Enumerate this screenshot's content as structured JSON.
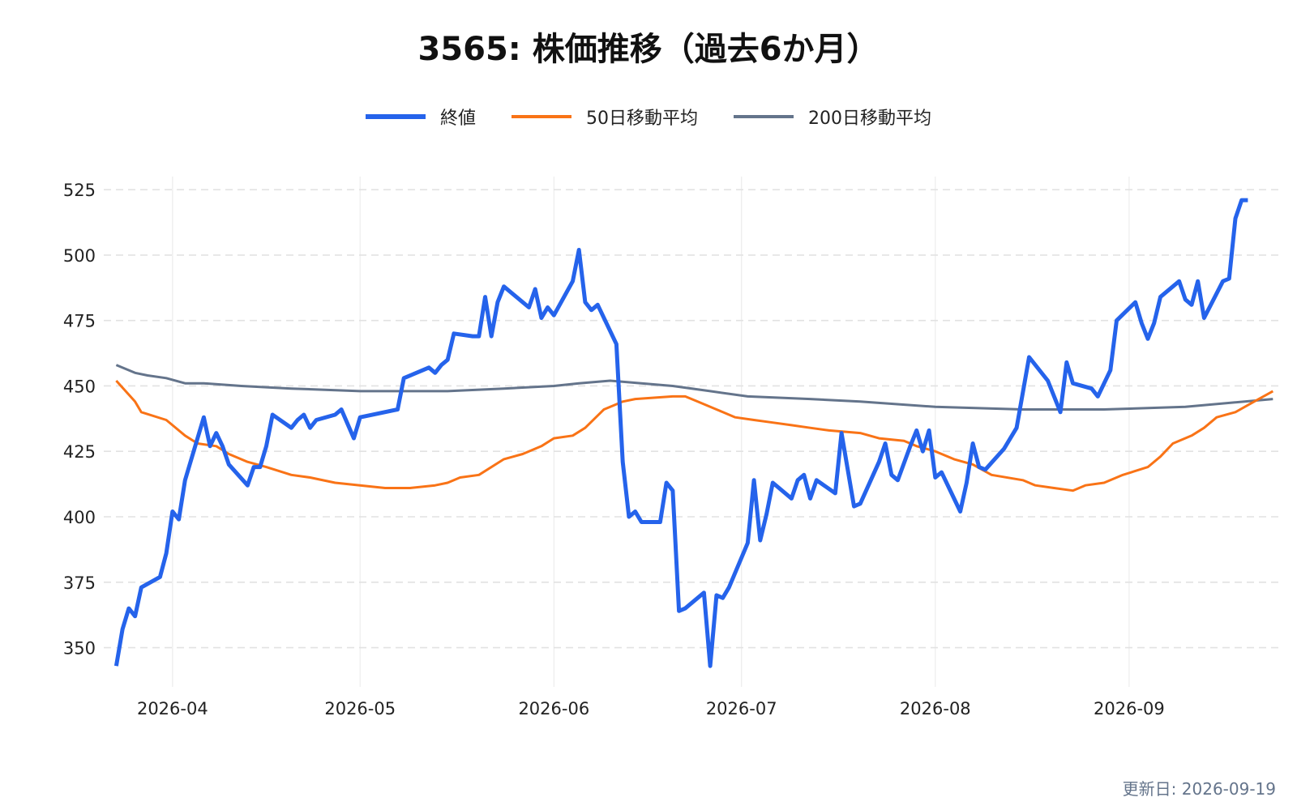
{
  "chart_data": {
    "type": "line",
    "title": "3565: 株価推移（過去6か月）",
    "xlabel": "",
    "ylabel": "",
    "x_range": [
      "2026-03-21",
      "2026-09-25"
    ],
    "ylim": [
      335,
      530
    ],
    "y_ticks": [
      350,
      375,
      400,
      425,
      450,
      475,
      500,
      525
    ],
    "x_ticks": [
      {
        "label": "2026-04",
        "date": "2026-04-01"
      },
      {
        "label": "2026-05",
        "date": "2026-05-01"
      },
      {
        "label": "2026-06",
        "date": "2026-06-01"
      },
      {
        "label": "2026-07",
        "date": "2026-07-01"
      },
      {
        "label": "2026-08",
        "date": "2026-08-01"
      },
      {
        "label": "2026-09",
        "date": "2026-09-01"
      }
    ],
    "grid": {
      "x": true,
      "y": true,
      "y_dashed": true
    },
    "legend_position": "top-center",
    "series": [
      {
        "name": "終値",
        "color": "#2563eb",
        "width": 5,
        "points": [
          [
            "2026-03-23",
            343
          ],
          [
            "2026-03-24",
            357
          ],
          [
            "2026-03-25",
            365
          ],
          [
            "2026-03-26",
            362
          ],
          [
            "2026-03-27",
            373
          ],
          [
            "2026-03-30",
            377
          ],
          [
            "2026-03-31",
            386
          ],
          [
            "2026-04-01",
            402
          ],
          [
            "2026-04-02",
            399
          ],
          [
            "2026-04-03",
            414
          ],
          [
            "2026-04-06",
            438
          ],
          [
            "2026-04-07",
            427
          ],
          [
            "2026-04-08",
            432
          ],
          [
            "2026-04-09",
            427
          ],
          [
            "2026-04-10",
            420
          ],
          [
            "2026-04-13",
            412
          ],
          [
            "2026-04-14",
            419
          ],
          [
            "2026-04-15",
            419
          ],
          [
            "2026-04-16",
            427
          ],
          [
            "2026-04-17",
            439
          ],
          [
            "2026-04-20",
            434
          ],
          [
            "2026-04-21",
            437
          ],
          [
            "2026-04-22",
            439
          ],
          [
            "2026-04-23",
            434
          ],
          [
            "2026-04-24",
            437
          ],
          [
            "2026-04-27",
            439
          ],
          [
            "2026-04-28",
            441
          ],
          [
            "2026-04-30",
            430
          ],
          [
            "2026-05-01",
            438
          ],
          [
            "2026-05-07",
            441
          ],
          [
            "2026-05-08",
            453
          ],
          [
            "2026-05-11",
            456
          ],
          [
            "2026-05-12",
            457
          ],
          [
            "2026-05-13",
            455
          ],
          [
            "2026-05-14",
            458
          ],
          [
            "2026-05-15",
            460
          ],
          [
            "2026-05-16",
            470
          ],
          [
            "2026-05-19",
            469
          ],
          [
            "2026-05-20",
            469
          ],
          [
            "2026-05-21",
            484
          ],
          [
            "2026-05-22",
            469
          ],
          [
            "2026-05-23",
            482
          ],
          [
            "2026-05-24",
            488
          ],
          [
            "2026-05-27",
            482
          ],
          [
            "2026-05-28",
            480
          ],
          [
            "2026-05-29",
            487
          ],
          [
            "2026-05-30",
            476
          ],
          [
            "2026-05-31",
            480
          ],
          [
            "2026-06-01",
            477
          ],
          [
            "2026-06-04",
            490
          ],
          [
            "2026-06-05",
            502
          ],
          [
            "2026-06-06",
            482
          ],
          [
            "2026-06-07",
            479
          ],
          [
            "2026-06-08",
            481
          ],
          [
            "2026-06-11",
            466
          ],
          [
            "2026-06-12",
            421
          ],
          [
            "2026-06-13",
            400
          ],
          [
            "2026-06-14",
            402
          ],
          [
            "2026-06-15",
            398
          ],
          [
            "2026-06-17",
            398
          ],
          [
            "2026-06-18",
            398
          ],
          [
            "2026-06-19",
            413
          ],
          [
            "2026-06-20",
            410
          ],
          [
            "2026-06-21",
            364
          ],
          [
            "2026-06-22",
            365
          ],
          [
            "2026-06-25",
            371
          ],
          [
            "2026-06-26",
            343
          ],
          [
            "2026-06-27",
            370
          ],
          [
            "2026-06-28",
            369
          ],
          [
            "2026-06-29",
            373
          ],
          [
            "2026-07-02",
            390
          ],
          [
            "2026-07-03",
            414
          ],
          [
            "2026-07-04",
            391
          ],
          [
            "2026-07-05",
            401
          ],
          [
            "2026-07-06",
            413
          ],
          [
            "2026-07-09",
            407
          ],
          [
            "2026-07-10",
            414
          ],
          [
            "2026-07-11",
            416
          ],
          [
            "2026-07-12",
            407
          ],
          [
            "2026-07-13",
            414
          ],
          [
            "2026-07-16",
            409
          ],
          [
            "2026-07-17",
            432
          ],
          [
            "2026-07-19",
            404
          ],
          [
            "2026-07-20",
            405
          ],
          [
            "2026-07-23",
            421
          ],
          [
            "2026-07-24",
            428
          ],
          [
            "2026-07-25",
            416
          ],
          [
            "2026-07-26",
            414
          ],
          [
            "2026-07-28",
            427
          ],
          [
            "2026-07-29",
            433
          ],
          [
            "2026-07-30",
            425
          ],
          [
            "2026-07-31",
            433
          ],
          [
            "2026-08-01",
            415
          ],
          [
            "2026-08-02",
            417
          ],
          [
            "2026-08-05",
            402
          ],
          [
            "2026-08-06",
            413
          ],
          [
            "2026-08-07",
            428
          ],
          [
            "2026-08-08",
            419
          ],
          [
            "2026-08-09",
            418
          ],
          [
            "2026-08-12",
            426
          ],
          [
            "2026-08-14",
            434
          ],
          [
            "2026-08-16",
            461
          ],
          [
            "2026-08-19",
            452
          ],
          [
            "2026-08-21",
            440
          ],
          [
            "2026-08-22",
            459
          ],
          [
            "2026-08-23",
            451
          ],
          [
            "2026-08-26",
            449
          ],
          [
            "2026-08-27",
            446
          ],
          [
            "2026-08-29",
            456
          ],
          [
            "2026-08-30",
            475
          ],
          [
            "2026-09-02",
            482
          ],
          [
            "2026-09-03",
            474
          ],
          [
            "2026-09-04",
            468
          ],
          [
            "2026-09-05",
            474
          ],
          [
            "2026-09-06",
            484
          ],
          [
            "2026-09-09",
            490
          ],
          [
            "2026-09-10",
            483
          ],
          [
            "2026-09-11",
            481
          ],
          [
            "2026-09-12",
            490
          ],
          [
            "2026-09-13",
            476
          ],
          [
            "2026-09-16",
            490
          ],
          [
            "2026-09-17",
            491
          ],
          [
            "2026-09-18",
            514
          ],
          [
            "2026-09-19",
            521
          ],
          [
            "2026-09-20",
            521
          ]
        ]
      },
      {
        "name": "50日移動平均",
        "color": "#f97316",
        "width": 3,
        "points": [
          [
            "2026-03-23",
            452
          ],
          [
            "2026-03-26",
            444
          ],
          [
            "2026-03-27",
            440
          ],
          [
            "2026-03-31",
            437
          ],
          [
            "2026-04-01",
            435
          ],
          [
            "2026-04-03",
            431
          ],
          [
            "2026-04-05",
            428
          ],
          [
            "2026-04-08",
            427
          ],
          [
            "2026-04-10",
            424
          ],
          [
            "2026-04-13",
            421
          ],
          [
            "2026-04-16",
            419
          ],
          [
            "2026-04-20",
            416
          ],
          [
            "2026-04-23",
            415
          ],
          [
            "2026-04-27",
            413
          ],
          [
            "2026-05-01",
            412
          ],
          [
            "2026-05-05",
            411
          ],
          [
            "2026-05-09",
            411
          ],
          [
            "2026-05-13",
            412
          ],
          [
            "2026-05-15",
            413
          ],
          [
            "2026-05-17",
            415
          ],
          [
            "2026-05-20",
            416
          ],
          [
            "2026-05-24",
            422
          ],
          [
            "2026-05-27",
            424
          ],
          [
            "2026-05-30",
            427
          ],
          [
            "2026-06-01",
            430
          ],
          [
            "2026-06-04",
            431
          ],
          [
            "2026-06-06",
            434
          ],
          [
            "2026-06-09",
            441
          ],
          [
            "2026-06-12",
            444
          ],
          [
            "2026-06-14",
            445
          ],
          [
            "2026-06-20",
            446
          ],
          [
            "2026-06-22",
            446
          ],
          [
            "2026-06-24",
            444
          ],
          [
            "2026-06-27",
            441
          ],
          [
            "2026-06-30",
            438
          ],
          [
            "2026-07-03",
            437
          ],
          [
            "2026-07-06",
            436
          ],
          [
            "2026-07-09",
            435
          ],
          [
            "2026-07-12",
            434
          ],
          [
            "2026-07-15",
            433
          ],
          [
            "2026-07-20",
            432
          ],
          [
            "2026-07-23",
            430
          ],
          [
            "2026-07-27",
            429
          ],
          [
            "2026-07-29",
            427
          ],
          [
            "2026-08-01",
            425
          ],
          [
            "2026-08-04",
            422
          ],
          [
            "2026-08-07",
            420
          ],
          [
            "2026-08-10",
            416
          ],
          [
            "2026-08-15",
            414
          ],
          [
            "2026-08-17",
            412
          ],
          [
            "2026-08-20",
            411
          ],
          [
            "2026-08-23",
            410
          ],
          [
            "2026-08-25",
            412
          ],
          [
            "2026-08-28",
            413
          ],
          [
            "2026-08-31",
            416
          ],
          [
            "2026-09-04",
            419
          ],
          [
            "2026-09-06",
            423
          ],
          [
            "2026-09-08",
            428
          ],
          [
            "2026-09-11",
            431
          ],
          [
            "2026-09-13",
            434
          ],
          [
            "2026-09-15",
            438
          ],
          [
            "2026-09-18",
            440
          ],
          [
            "2026-09-21",
            444
          ],
          [
            "2026-09-24",
            448
          ]
        ]
      },
      {
        "name": "200日移動平均",
        "color": "#64748b",
        "width": 3,
        "points": [
          [
            "2026-03-23",
            458
          ],
          [
            "2026-03-26",
            455
          ],
          [
            "2026-03-28",
            454
          ],
          [
            "2026-03-31",
            453
          ],
          [
            "2026-04-03",
            451
          ],
          [
            "2026-04-06",
            451
          ],
          [
            "2026-04-12",
            450
          ],
          [
            "2026-04-20",
            449
          ],
          [
            "2026-05-01",
            448
          ],
          [
            "2026-05-15",
            448
          ],
          [
            "2026-05-24",
            449
          ],
          [
            "2026-06-01",
            450
          ],
          [
            "2026-06-05",
            451
          ],
          [
            "2026-06-10",
            452
          ],
          [
            "2026-06-15",
            451
          ],
          [
            "2026-06-20",
            450
          ],
          [
            "2026-06-26",
            448
          ],
          [
            "2026-07-02",
            446
          ],
          [
            "2026-07-12",
            445
          ],
          [
            "2026-07-20",
            444
          ],
          [
            "2026-08-01",
            442
          ],
          [
            "2026-08-15",
            441
          ],
          [
            "2026-08-28",
            441
          ],
          [
            "2026-09-10",
            442
          ],
          [
            "2026-09-24",
            445
          ]
        ]
      }
    ]
  },
  "updated": "更新日: 2026-09-19"
}
